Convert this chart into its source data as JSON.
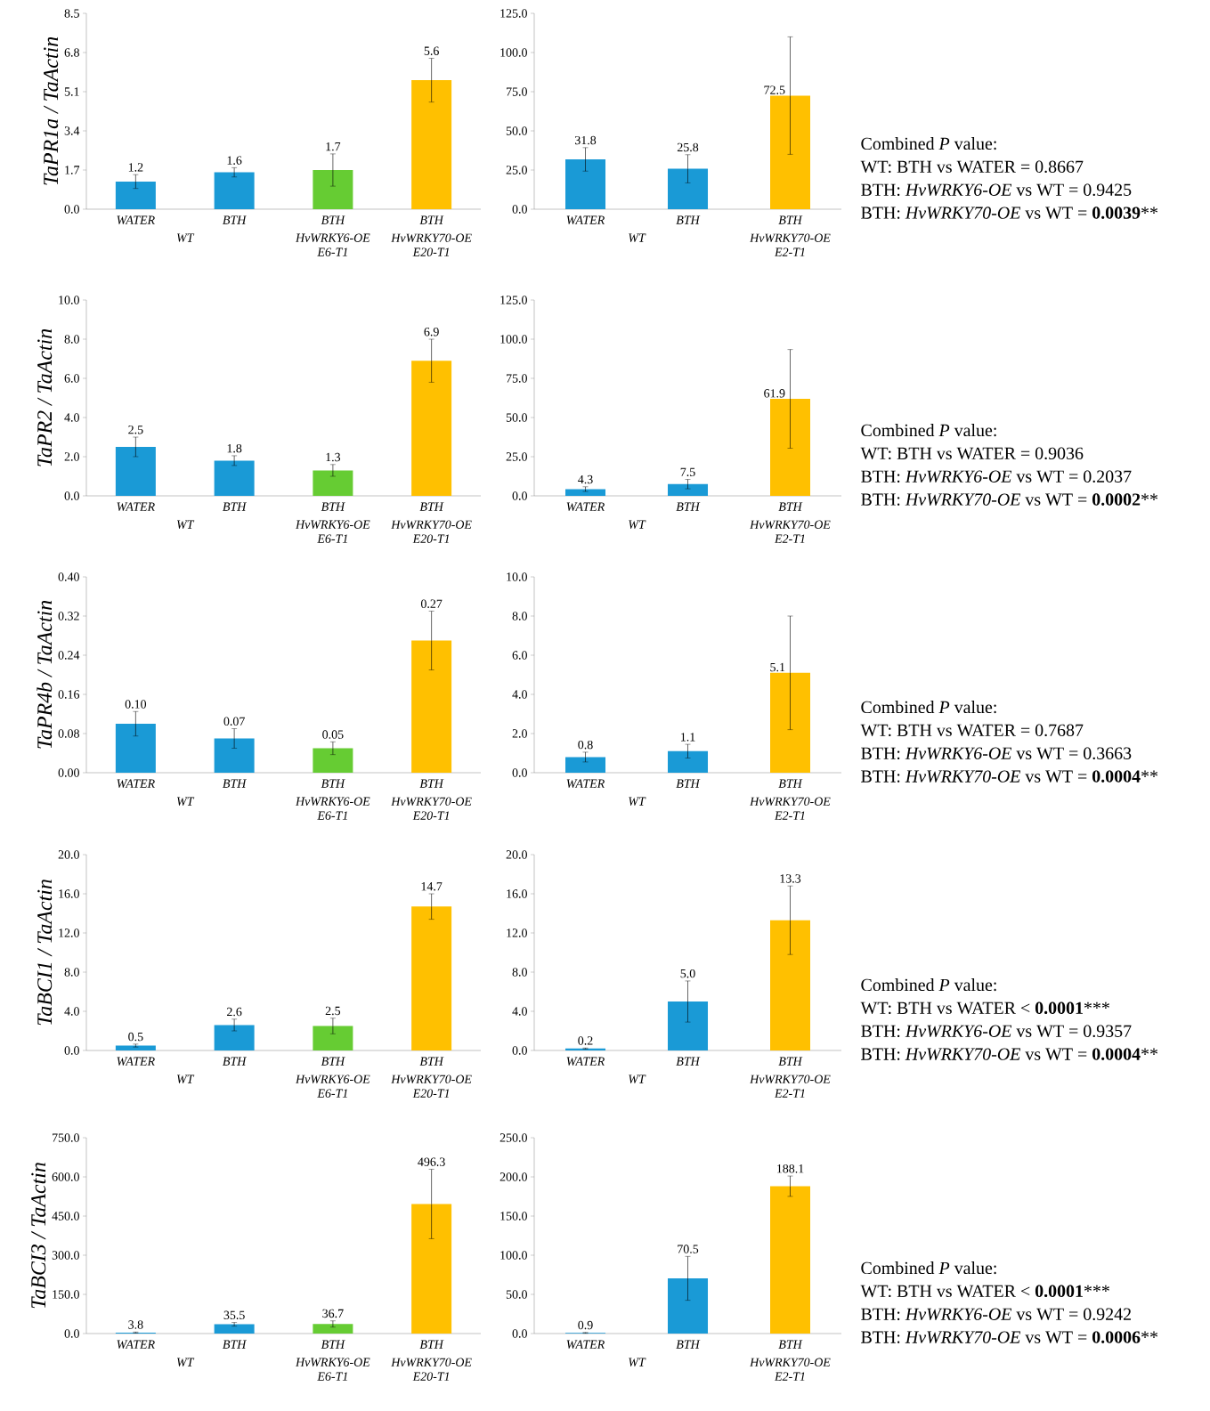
{
  "chart_data": [
    {
      "type": "bar",
      "ylabel": "TaPR1a / TaActin",
      "categories": [
        "WATER",
        "BTH",
        "BTH",
        "BTH"
      ],
      "annotations": [
        "WT",
        "HvWRKY6-OE E6-T1",
        "HvWRKY70-OE E20-T1"
      ],
      "values": [
        1.2,
        1.6,
        1.7,
        5.6
      ],
      "errors": [
        0.3,
        0.2,
        0.7,
        0.95
      ],
      "value_labels": [
        "1.2",
        "1.6",
        "1.7",
        "5.6"
      ],
      "colors": [
        "#1a9ad6",
        "#1a9ad6",
        "#66cc33",
        "#ffc000"
      ],
      "ylim": [
        0,
        8.5
      ],
      "yticks": [
        {
          "value": 0,
          "label": "0.0"
        },
        {
          "value": 1.7,
          "label": "1.7"
        },
        {
          "value": 3.4,
          "label": "3.4"
        },
        {
          "value": 5.1,
          "label": "5.1"
        },
        {
          "value": 6.8,
          "label": "6.8"
        },
        {
          "value": 8.5,
          "label": "8.5"
        }
      ]
    },
    {
      "type": "bar",
      "categories": [
        "WATER",
        "BTH",
        "BTH"
      ],
      "annotations": [
        "WT",
        "HvWRKY70-OE E2-T1"
      ],
      "values": [
        31.8,
        25.8,
        72.5
      ],
      "errors": [
        7.5,
        9,
        37.5
      ],
      "value_labels": [
        "31.8",
        "25.8",
        "72.5"
      ],
      "colors": [
        "#1a9ad6",
        "#1a9ad6",
        "#ffc000"
      ],
      "ylim": [
        0,
        125
      ],
      "yticks": [
        {
          "value": 0,
          "label": "0.0"
        },
        {
          "value": 25,
          "label": "25.0"
        },
        {
          "value": 50,
          "label": "50.0"
        },
        {
          "value": 75,
          "label": "75.0"
        },
        {
          "value": 100,
          "label": "100.0"
        },
        {
          "value": 125,
          "label": "125.0"
        }
      ]
    },
    {
      "type": "other",
      "annotations": [
        "Combined *P* value:",
        "WT: BTH vs WATER = 0.8667",
        "BTH: *HvWRKY6-OE* vs WT = 0.9425",
        "BTH: *HvWRKY70-OE* vs WT = **0.0039****"
      ]
    },
    {
      "type": "bar",
      "ylabel": "TaPR2 / TaActin",
      "categories": [
        "WATER",
        "BTH",
        "BTH",
        "BTH"
      ],
      "annotations": [
        "WT",
        "HvWRKY6-OE E6-T1",
        "HvWRKY70-OE E20-T1"
      ],
      "values": [
        2.5,
        1.8,
        1.3,
        6.9
      ],
      "errors": [
        0.5,
        0.25,
        0.3,
        1.1
      ],
      "value_labels": [
        "2.5",
        "1.8",
        "1.3",
        "6.9"
      ],
      "colors": [
        "#1a9ad6",
        "#1a9ad6",
        "#66cc33",
        "#ffc000"
      ],
      "ylim": [
        0,
        10
      ],
      "yticks": [
        {
          "value": 0,
          "label": "0.0"
        },
        {
          "value": 2,
          "label": "2.0"
        },
        {
          "value": 4,
          "label": "4.0"
        },
        {
          "value": 6,
          "label": "6.0"
        },
        {
          "value": 8,
          "label": "8.0"
        },
        {
          "value": 10,
          "label": "10.0"
        }
      ]
    },
    {
      "type": "bar",
      "categories": [
        "WATER",
        "BTH",
        "BTH"
      ],
      "annotations": [
        "WT",
        "HvWRKY70-OE E2-T1"
      ],
      "values": [
        4.3,
        7.5,
        61.9
      ],
      "errors": [
        1.5,
        3,
        31.5
      ],
      "value_labels": [
        "4.3",
        "7.5",
        "61.9"
      ],
      "colors": [
        "#1a9ad6",
        "#1a9ad6",
        "#ffc000"
      ],
      "ylim": [
        0,
        125
      ],
      "yticks": [
        {
          "value": 0,
          "label": "0.0"
        },
        {
          "value": 25,
          "label": "25.0"
        },
        {
          "value": 50,
          "label": "50.0"
        },
        {
          "value": 75,
          "label": "75.0"
        },
        {
          "value": 100,
          "label": "100.0"
        },
        {
          "value": 125,
          "label": "125.0"
        }
      ]
    },
    {
      "type": "other",
      "annotations": [
        "Combined *P* value:",
        "WT: BTH vs WATER = 0.9036",
        "BTH: *HvWRKY6-OE* vs WT = 0.2037",
        "BTH: *HvWRKY70-OE* vs WT = **0.0002****"
      ]
    },
    {
      "type": "bar",
      "ylabel": "TaPR4b / TaActin",
      "categories": [
        "WATER",
        "BTH",
        "BTH",
        "BTH"
      ],
      "annotations": [
        "WT",
        "HvWRKY6-OE E6-T1",
        "HvWRKY70-OE E20-T1"
      ],
      "values": [
        0.1,
        0.07,
        0.05,
        0.27
      ],
      "errors": [
        0.025,
        0.02,
        0.013,
        0.06
      ],
      "value_labels": [
        "0.10",
        "0.07",
        "0.05",
        "0.27"
      ],
      "colors": [
        "#1a9ad6",
        "#1a9ad6",
        "#66cc33",
        "#ffc000"
      ],
      "ylim": [
        0,
        0.4
      ],
      "yticks": [
        {
          "value": 0,
          "label": "0.00"
        },
        {
          "value": 0.08,
          "label": "0.08"
        },
        {
          "value": 0.16,
          "label": "0.16"
        },
        {
          "value": 0.24,
          "label": "0.24"
        },
        {
          "value": 0.32,
          "label": "0.32"
        },
        {
          "value": 0.4,
          "label": "0.40"
        }
      ]
    },
    {
      "type": "bar",
      "categories": [
        "WATER",
        "BTH",
        "BTH"
      ],
      "annotations": [
        "WT",
        "HvWRKY70-OE E2-T1"
      ],
      "values": [
        0.8,
        1.1,
        5.1
      ],
      "errors": [
        0.25,
        0.35,
        2.9
      ],
      "value_labels": [
        "0.8",
        "1.1",
        "5.1"
      ],
      "colors": [
        "#1a9ad6",
        "#1a9ad6",
        "#ffc000"
      ],
      "ylim": [
        0,
        10
      ],
      "yticks": [
        {
          "value": 0,
          "label": "0.0"
        },
        {
          "value": 2,
          "label": "2.0"
        },
        {
          "value": 4,
          "label": "4.0"
        },
        {
          "value": 6,
          "label": "6.0"
        },
        {
          "value": 8,
          "label": "8.0"
        },
        {
          "value": 10,
          "label": "10.0"
        }
      ]
    },
    {
      "type": "other",
      "annotations": [
        "Combined *P* value:",
        "WT: BTH vs WATER = 0.7687",
        "BTH: *HvWRKY6-OE* vs WT = 0.3663",
        "BTH: *HvWRKY70-OE* vs WT = **0.0004****"
      ]
    },
    {
      "type": "bar",
      "ylabel": "TaBCI1 / TaActin",
      "categories": [
        "WATER",
        "BTH",
        "BTH",
        "BTH"
      ],
      "annotations": [
        "WT",
        "HvWRKY6-OE E6-T1",
        "HvWRKY70-OE E20-T1"
      ],
      "values": [
        0.5,
        2.6,
        2.5,
        14.7
      ],
      "errors": [
        0.15,
        0.6,
        0.8,
        1.3
      ],
      "value_labels": [
        "0.5",
        "2.6",
        "2.5",
        "14.7"
      ],
      "colors": [
        "#1a9ad6",
        "#1a9ad6",
        "#66cc33",
        "#ffc000"
      ],
      "ylim": [
        0,
        20
      ],
      "yticks": [
        {
          "value": 0,
          "label": "0.0"
        },
        {
          "value": 4,
          "label": "4.0"
        },
        {
          "value": 8,
          "label": "8.0"
        },
        {
          "value": 12,
          "label": "12.0"
        },
        {
          "value": 16,
          "label": "16.0"
        },
        {
          "value": 20,
          "label": "20.0"
        }
      ]
    },
    {
      "type": "bar",
      "categories": [
        "WATER",
        "BTH",
        "BTH"
      ],
      "annotations": [
        "WT",
        "HvWRKY70-OE E2-T1"
      ],
      "values": [
        0.2,
        5.0,
        13.3
      ],
      "errors": [
        0.05,
        2.1,
        3.5
      ],
      "value_labels": [
        "0.2",
        "5.0",
        "13.3"
      ],
      "colors": [
        "#1a9ad6",
        "#1a9ad6",
        "#ffc000"
      ],
      "ylim": [
        0,
        20
      ],
      "yticks": [
        {
          "value": 0,
          "label": "0.0"
        },
        {
          "value": 4,
          "label": "4.0"
        },
        {
          "value": 8,
          "label": "8.0"
        },
        {
          "value": 12,
          "label": "12.0"
        },
        {
          "value": 16,
          "label": "16.0"
        },
        {
          "value": 20,
          "label": "20.0"
        }
      ]
    },
    {
      "type": "other",
      "annotations": [
        "Combined *P* value:",
        "WT: BTH vs WATER < **0.0001*****",
        "BTH: *HvWRKY6-OE* vs WT = 0.9357",
        "BTH: *HvWRKY70-OE* vs WT = **0.0004****"
      ]
    },
    {
      "type": "bar",
      "ylabel": "TaBCI3 / TaActin",
      "categories": [
        "WATER",
        "BTH",
        "BTH",
        "BTH"
      ],
      "annotations": [
        "WT",
        "HvWRKY6-OE E6-T1",
        "HvWRKY70-OE E20-T1"
      ],
      "values": [
        3.8,
        35.5,
        36.7,
        496.3
      ],
      "errors": [
        2,
        7,
        12,
        133
      ],
      "value_labels": [
        "3.8",
        "35.5",
        "36.7",
        "496.3"
      ],
      "colors": [
        "#1a9ad6",
        "#1a9ad6",
        "#66cc33",
        "#ffc000"
      ],
      "ylim": [
        0,
        750
      ],
      "yticks": [
        {
          "value": 0,
          "label": "0.0"
        },
        {
          "value": 150,
          "label": "150.0"
        },
        {
          "value": 300,
          "label": "300.0"
        },
        {
          "value": 450,
          "label": "450.0"
        },
        {
          "value": 600,
          "label": "600.0"
        },
        {
          "value": 750,
          "label": "750.0"
        }
      ]
    },
    {
      "type": "bar",
      "categories": [
        "WATER",
        "BTH",
        "BTH"
      ],
      "annotations": [
        "WT",
        "HvWRKY70-OE E2-T1"
      ],
      "values": [
        0.9,
        70.5,
        188.1
      ],
      "errors": [
        0.5,
        28,
        13
      ],
      "value_labels": [
        "0.9",
        "70.5",
        "188.1"
      ],
      "colors": [
        "#1a9ad6",
        "#1a9ad6",
        "#ffc000"
      ],
      "ylim": [
        0,
        250
      ],
      "yticks": [
        {
          "value": 0,
          "label": "0.0"
        },
        {
          "value": 50,
          "label": "50.0"
        },
        {
          "value": 100,
          "label": "100.0"
        },
        {
          "value": 150,
          "label": "150.0"
        },
        {
          "value": 200,
          "label": "200.0"
        },
        {
          "value": 250,
          "label": "250.0"
        }
      ]
    },
    {
      "type": "other",
      "annotations": [
        "Combined *P* value:",
        "WT: BTH vs WATER < **0.0001*****",
        "BTH: *HvWRKY6-OE* vs WT = 0.9242",
        "BTH: *HvWRKY70-OE* vs WT = **0.0006****"
      ]
    }
  ]
}
